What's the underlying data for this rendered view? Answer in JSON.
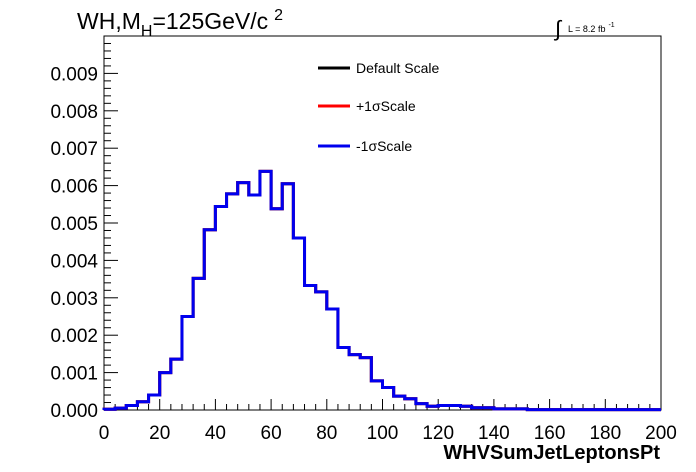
{
  "chart_data": {
    "type": "line",
    "step": true,
    "title": "WH,M_H=125GeV/c^2",
    "title_parts": {
      "main": "WH,M",
      "sub": "H",
      "rest": "=125GeV/c",
      "sup": "2"
    },
    "luminosity_label": {
      "integral": "∫",
      "text": "L = 8.2 fb",
      "sup": "-1"
    },
    "xlabel": "WHVSumJetLeptonsPt",
    "ylabel": "",
    "xlim": [
      0,
      200
    ],
    "ylim": [
      0,
      0.01
    ],
    "xticks": [
      "0",
      "20",
      "40",
      "60",
      "80",
      "100",
      "120",
      "140",
      "160",
      "180",
      "200"
    ],
    "yticks": [
      "0.000",
      "0.001",
      "0.002",
      "0.003",
      "0.004",
      "0.005",
      "0.006",
      "0.007",
      "0.008",
      "0.009"
    ],
    "grid": false,
    "legend_position": "top-center",
    "bin_edges_start": 0,
    "bin_width": 4,
    "series": [
      {
        "name": "Default Scale",
        "color": "#000000",
        "values": [
          2e-05,
          5e-05,
          0.00012,
          0.00022,
          0.0004,
          0.001,
          0.00136,
          0.0025,
          0.00352,
          0.00482,
          0.00544,
          0.00578,
          0.00608,
          0.00575,
          0.00638,
          0.00538,
          0.00605,
          0.0046,
          0.00333,
          0.00316,
          0.0027,
          0.00167,
          0.00148,
          0.0014,
          0.00078,
          0.0006,
          0.00037,
          0.0003,
          0.00017,
          0.0001,
          0.00012,
          0.00012,
          0.0001,
          6e-05,
          6e-05,
          3e-05,
          3e-05,
          3e-05,
          1e-05,
          1e-05,
          1e-05,
          1e-05,
          1e-05,
          1e-05,
          1e-05,
          1e-05,
          1e-05,
          1e-05,
          1e-05,
          1e-05
        ]
      },
      {
        "name": "+1σScale",
        "color": "#ff0000",
        "values": [
          2e-05,
          5e-05,
          0.00012,
          0.00022,
          0.0004,
          0.001,
          0.00136,
          0.0025,
          0.00352,
          0.00482,
          0.00544,
          0.00578,
          0.00608,
          0.00575,
          0.00638,
          0.00538,
          0.00605,
          0.0046,
          0.00333,
          0.00316,
          0.0027,
          0.00167,
          0.00148,
          0.0014,
          0.00078,
          0.0006,
          0.00037,
          0.0003,
          0.00017,
          0.0001,
          0.00012,
          0.00012,
          0.0001,
          6e-05,
          6e-05,
          3e-05,
          3e-05,
          3e-05,
          1e-05,
          1e-05,
          1e-05,
          1e-05,
          1e-05,
          1e-05,
          1e-05,
          1e-05,
          1e-05,
          1e-05,
          1e-05,
          1e-05
        ]
      },
      {
        "name": "-1σScale",
        "color": "#0000ee",
        "values": [
          2e-05,
          5e-05,
          0.00012,
          0.00022,
          0.0004,
          0.001,
          0.00136,
          0.0025,
          0.00352,
          0.00482,
          0.00544,
          0.00578,
          0.00608,
          0.00575,
          0.00638,
          0.00538,
          0.00605,
          0.0046,
          0.00333,
          0.00316,
          0.0027,
          0.00167,
          0.00148,
          0.0014,
          0.00078,
          0.0006,
          0.00037,
          0.0003,
          0.00017,
          0.0001,
          0.00012,
          0.00012,
          0.0001,
          6e-05,
          6e-05,
          3e-05,
          3e-05,
          3e-05,
          1e-05,
          1e-05,
          1e-05,
          1e-05,
          1e-05,
          1e-05,
          1e-05,
          1e-05,
          1e-05,
          1e-05,
          1e-05,
          1e-05
        ]
      }
    ]
  }
}
